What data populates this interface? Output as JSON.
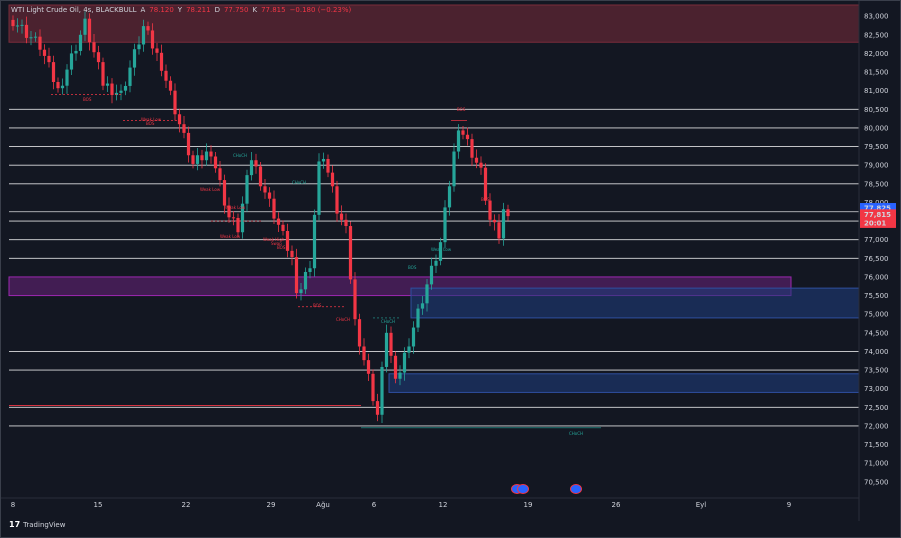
{
  "legend": {
    "symbol": "WTI Light Crude Oil, 4s, BLACKBULL",
    "open_label": "A",
    "open_value": "78.120",
    "high_label": "Y",
    "high_value": "78.211",
    "low_label": "D",
    "low_value": "77.750",
    "close_label": "K",
    "close_value": "77.815",
    "change": "−0.180 (−0.23%)"
  },
  "current_price_label": "77,825",
  "current_price_last": "77,815",
  "countdown": "20:01",
  "brand": "TradingView",
  "colors": {
    "background": "#131722",
    "up": "#26a69a",
    "down": "#f23645",
    "grid_line": "#ffffff",
    "supply_zone": "#7a2c3a",
    "purple_zone": "#9c27b0",
    "blue_zone": "#1e3a78",
    "accent": "#2962ff"
  },
  "icons": [
    "event-icon",
    "event-icon"
  ],
  "chart_data": {
    "type": "candlestick",
    "title": "",
    "y_axis_labels": [
      "83,000",
      "82,500",
      "82,000",
      "81,500",
      "81,000",
      "80,500",
      "80,000",
      "79,500",
      "79,000",
      "78,500",
      "78,000",
      "77,500",
      "77,000",
      "76,500",
      "76,000",
      "75,500",
      "75,000",
      "74,500",
      "74,000",
      "73,500",
      "73,000",
      "72,500",
      "72,000",
      "71,500",
      "71,000",
      "70,500"
    ],
    "ylim": [
      70.2,
      83.3
    ],
    "x_axis_labels": [
      "8",
      "15",
      "22",
      "29",
      "Ağu",
      "6",
      "12",
      "19",
      "26",
      "Eyl",
      "9"
    ],
    "horizontal_levels": [
      80.5,
      80.0,
      79.5,
      79.0,
      78.5,
      77.75,
      77.5,
      77.0,
      76.5,
      74.0,
      73.5,
      72.5,
      72.0
    ],
    "zones": [
      {
        "name": "supply-zone",
        "y_top": 83.3,
        "y_bottom": 82.3
      },
      {
        "name": "purple-zone",
        "y_top": 76.0,
        "y_bottom": 75.5
      },
      {
        "name": "blue-zone-upper",
        "y_top": 75.7,
        "y_bottom": 74.9
      },
      {
        "name": "blue-zone-lower",
        "y_top": 73.4,
        "y_bottom": 72.9
      }
    ],
    "annotations": [
      "BOS",
      "BOS",
      "CHoCH",
      "CHoCH",
      "Weak Low",
      "Weak Low",
      "BOS",
      "BOS",
      "BOS",
      "CHoCH",
      "CHoCH",
      "BOS",
      "Weak Low",
      "Weak High",
      "CHoCH",
      "Weak Low",
      "Weak Low",
      "BOS",
      "Swap"
    ],
    "series": [
      {
        "segments": [
          [
            0,
            82.9,
            82.2
          ],
          [
            6,
            82.2,
            81.0
          ],
          [
            10,
            81.0,
            82.8
          ],
          [
            16,
            82.8,
            81.2
          ],
          [
            20,
            81.2,
            80.9
          ],
          [
            24,
            80.9,
            82.7
          ],
          [
            29,
            82.7,
            81.7
          ],
          [
            33,
            81.7,
            80.1
          ],
          [
            37,
            80.1,
            79.0
          ],
          [
            40,
            79.0,
            79.4
          ],
          [
            44,
            79.4,
            77.6
          ],
          [
            48,
            77.6,
            77.3
          ],
          [
            50,
            77.3,
            79.2
          ],
          [
            53,
            79.2,
            78.3
          ],
          [
            56,
            78.3,
            77.7
          ],
          [
            58,
            77.7,
            76.5
          ],
          [
            62,
            76.5,
            75.4
          ],
          [
            63,
            75.4,
            76.4
          ],
          [
            66,
            76.4,
            79.0
          ],
          [
            68,
            79.0,
            79.3
          ],
          [
            69,
            79.3,
            77.8
          ],
          [
            72,
            77.8,
            77.2
          ],
          [
            74,
            77.2,
            74.8
          ],
          [
            76,
            74.8,
            73.3
          ],
          [
            79,
            73.3,
            72.3
          ],
          [
            81,
            72.3,
            74.6
          ],
          [
            83,
            74.6,
            73.1
          ],
          [
            85,
            73.1,
            74.3
          ],
          [
            88,
            74.3,
            75.8
          ],
          [
            92,
            75.8,
            76.9
          ],
          [
            95,
            76.9,
            78.5
          ],
          [
            97,
            78.5,
            80.1
          ],
          [
            99,
            80.1,
            79.6
          ],
          [
            101,
            79.6,
            78.8
          ],
          [
            104,
            78.8,
            77.5
          ],
          [
            106,
            77.5,
            77.1
          ],
          [
            108,
            77.1,
            78.4
          ],
          [
            110,
            78.4,
            77.8
          ]
        ]
      }
    ]
  }
}
